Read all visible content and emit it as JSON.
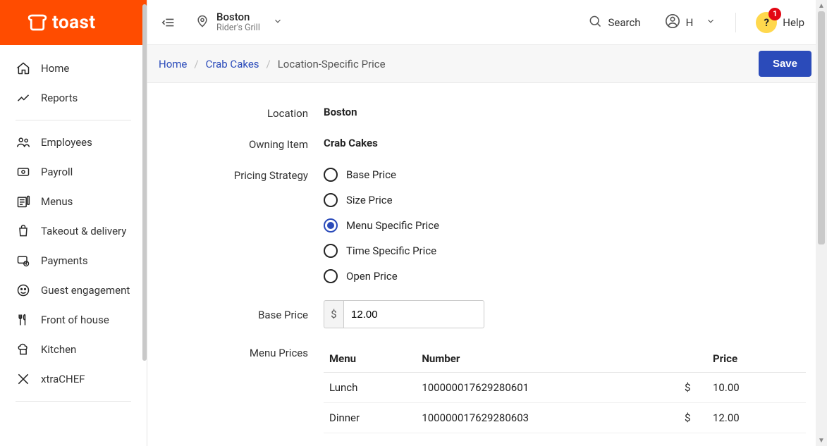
{
  "brand": "toast",
  "nav": {
    "groups": [
      [
        "Home",
        "Reports"
      ],
      [
        "Employees",
        "Payroll",
        "Menus",
        "Takeout & delivery",
        "Payments",
        "Guest engagement",
        "Front of house",
        "Kitchen",
        "xtraCHEF"
      ]
    ]
  },
  "topbar": {
    "location_name": "Boston",
    "location_sub": "Rider's Grill",
    "search_label": "Search",
    "user_initial": "H",
    "help_label": "Help",
    "help_badge": "1"
  },
  "breadcrumbs": {
    "items": [
      "Home",
      "Crab Cakes",
      "Location-Specific Price"
    ],
    "save_label": "Save"
  },
  "fields": {
    "location_label": "Location",
    "location_value": "Boston",
    "owning_label": "Owning Item",
    "owning_value": "Crab Cakes",
    "strategy_label": "Pricing Strategy",
    "strategy_options": [
      "Base Price",
      "Size Price",
      "Menu Specific Price",
      "Time Specific Price",
      "Open Price"
    ],
    "strategy_selected_index": 2,
    "base_price_label": "Base Price",
    "base_price_value": "12.00",
    "menu_prices_label": "Menu Prices",
    "menu_prices_headers": {
      "menu": "Menu",
      "number": "Number",
      "price": "Price"
    },
    "menu_prices_rows": [
      {
        "menu": "Lunch",
        "number": "100000017629280601",
        "currency": "$",
        "price": "10.00"
      },
      {
        "menu": "Dinner",
        "number": "100000017629280603",
        "currency": "$",
        "price": "12.00"
      }
    ]
  }
}
